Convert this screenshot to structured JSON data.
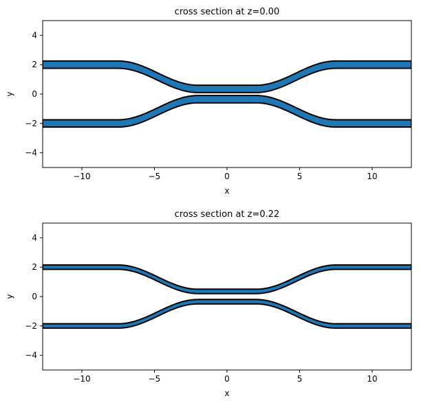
{
  "figure": {
    "background": "#ffffff"
  },
  "chart_data": [
    {
      "type": "area",
      "title": "cross section at z=0.00",
      "xlabel": "x",
      "ylabel": "y",
      "xlim": [
        -12.7,
        12.7
      ],
      "ylim": [
        -5,
        5
      ],
      "xticks": [
        -10,
        -5,
        0,
        5,
        10
      ],
      "yticks": [
        -4,
        -2,
        0,
        2,
        4
      ],
      "grid": false,
      "legend": "none",
      "fill_color": "#1f77b4",
      "edge_color": "#000000",
      "waveguides": {
        "shape": "two mirrored S-bend coupler bands, symmetric about y=0",
        "outer_center_y": 2.0,
        "inner_center_y": 0.35,
        "bend_start_x": 2.0,
        "bend_end_x": 7.5,
        "thickness": 0.5
      }
    },
    {
      "type": "area",
      "title": "cross section at z=0.22",
      "xlabel": "x",
      "ylabel": "y",
      "xlim": [
        -12.7,
        12.7
      ],
      "ylim": [
        -5,
        5
      ],
      "xticks": [
        -10,
        -5,
        0,
        5,
        10
      ],
      "yticks": [
        -4,
        -2,
        0,
        2,
        4
      ],
      "grid": false,
      "legend": "none",
      "fill_color": "#1f77b4",
      "edge_color": "#000000",
      "waveguides": {
        "shape": "two mirrored S-bend coupler bands, symmetric about y=0",
        "outer_center_y": 2.0,
        "inner_center_y": 0.35,
        "bend_start_x": 2.0,
        "bend_end_x": 7.5,
        "thickness": 0.3
      }
    }
  ]
}
